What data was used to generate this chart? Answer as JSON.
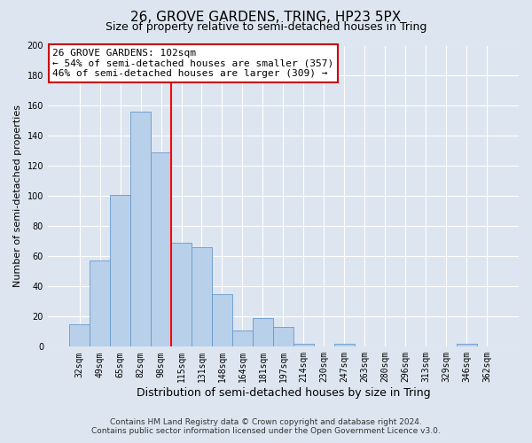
{
  "title": "26, GROVE GARDENS, TRING, HP23 5PX",
  "subtitle": "Size of property relative to semi-detached houses in Tring",
  "xlabel": "Distribution of semi-detached houses by size in Tring",
  "ylabel": "Number of semi-detached properties",
  "bar_labels": [
    "32sqm",
    "49sqm",
    "65sqm",
    "82sqm",
    "98sqm",
    "115sqm",
    "131sqm",
    "148sqm",
    "164sqm",
    "181sqm",
    "197sqm",
    "214sqm",
    "230sqm",
    "247sqm",
    "263sqm",
    "280sqm",
    "296sqm",
    "313sqm",
    "329sqm",
    "346sqm",
    "362sqm"
  ],
  "bar_values": [
    15,
    57,
    101,
    156,
    129,
    69,
    66,
    35,
    11,
    19,
    13,
    2,
    0,
    2,
    0,
    0,
    0,
    0,
    0,
    2,
    0
  ],
  "bar_color": "#b8d0ea",
  "bar_edge_color": "#6699cc",
  "vline_x_index": 4.5,
  "vline_color": "red",
  "ylim": [
    0,
    200
  ],
  "yticks": [
    0,
    20,
    40,
    60,
    80,
    100,
    120,
    140,
    160,
    180,
    200
  ],
  "annotation_title": "26 GROVE GARDENS: 102sqm",
  "annotation_line1": "← 54% of semi-detached houses are smaller (357)",
  "annotation_line2": "46% of semi-detached houses are larger (309) →",
  "annotation_box_facecolor": "#ffffff",
  "annotation_box_edgecolor": "#cc0000",
  "footer_line1": "Contains HM Land Registry data © Crown copyright and database right 2024.",
  "footer_line2": "Contains public sector information licensed under the Open Government Licence v3.0.",
  "background_color": "#dde6f0",
  "grid_color": "#ffffff",
  "title_fontsize": 11,
  "subtitle_fontsize": 9,
  "xlabel_fontsize": 9,
  "ylabel_fontsize": 8,
  "tick_fontsize": 7,
  "footer_fontsize": 6.5,
  "annotation_fontsize": 8
}
